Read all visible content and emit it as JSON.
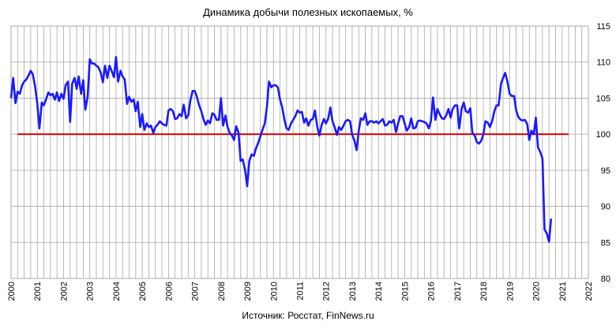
{
  "chart_data": {
    "type": "line",
    "title": "Динамика добычи полезных ископаемых, %",
    "source": "Источник: Росстат, FinNews.ru",
    "xlabel": "",
    "ylabel": "",
    "xlim": [
      2000,
      2022
    ],
    "ylim": [
      80,
      115
    ],
    "x_ticks": [
      "2000",
      "2001",
      "2002",
      "2003",
      "2004",
      "2005",
      "2006",
      "2007",
      "2008",
      "2009",
      "2010",
      "2011",
      "2012",
      "2013",
      "2014",
      "2015",
      "2016",
      "2017",
      "2018",
      "2019",
      "2020",
      "2021",
      "2022"
    ],
    "y_ticks": [
      "80",
      "85",
      "90",
      "95",
      "100",
      "105",
      "110",
      "115"
    ],
    "y_axis_side": "right",
    "grid": "vertical monthly lines, horizontal at y ticks",
    "colors": {
      "series": "#1a1aff",
      "reference": "#dd0000",
      "grid": "#a8a8a8"
    },
    "reference_line": {
      "y": 100,
      "x_start": 2000.25,
      "x_end": 2021.25
    },
    "series": [
      {
        "points": [
          [
            2000.0,
            105.0
          ],
          [
            2000.08,
            107.8
          ],
          [
            2000.17,
            104.3
          ],
          [
            2000.25,
            105.9
          ],
          [
            2000.33,
            105.6
          ],
          [
            2000.42,
            106.8
          ],
          [
            2000.5,
            107.3
          ],
          [
            2000.58,
            107.6
          ],
          [
            2000.67,
            108.2
          ],
          [
            2000.75,
            108.8
          ],
          [
            2000.83,
            108.3
          ],
          [
            2000.92,
            106.5
          ],
          [
            2001.0,
            104.3
          ],
          [
            2001.08,
            100.8
          ],
          [
            2001.17,
            104.4
          ],
          [
            2001.25,
            104.0
          ],
          [
            2001.33,
            104.8
          ],
          [
            2001.42,
            105.8
          ],
          [
            2001.5,
            105.4
          ],
          [
            2001.58,
            105.6
          ],
          [
            2001.67,
            104.8
          ],
          [
            2001.75,
            105.8
          ],
          [
            2001.83,
            104.6
          ],
          [
            2001.92,
            105.6
          ],
          [
            2002.0,
            104.9
          ],
          [
            2002.08,
            106.8
          ],
          [
            2002.17,
            107.3
          ],
          [
            2002.25,
            101.7
          ],
          [
            2002.33,
            107.0
          ],
          [
            2002.42,
            107.8
          ],
          [
            2002.5,
            106.3
          ],
          [
            2002.58,
            108.0
          ],
          [
            2002.67,
            105.6
          ],
          [
            2002.75,
            107.5
          ],
          [
            2002.83,
            103.4
          ],
          [
            2002.92,
            105.2
          ],
          [
            2003.0,
            110.4
          ],
          [
            2003.08,
            109.8
          ],
          [
            2003.17,
            109.8
          ],
          [
            2003.25,
            109.5
          ],
          [
            2003.33,
            109.3
          ],
          [
            2003.42,
            108.5
          ],
          [
            2003.5,
            107.2
          ],
          [
            2003.58,
            109.5
          ],
          [
            2003.67,
            107.8
          ],
          [
            2003.75,
            109.5
          ],
          [
            2003.83,
            108.8
          ],
          [
            2003.92,
            107.9
          ],
          [
            2004.0,
            110.7
          ],
          [
            2004.08,
            107.3
          ],
          [
            2004.17,
            108.8
          ],
          [
            2004.25,
            108.0
          ],
          [
            2004.33,
            107.6
          ],
          [
            2004.42,
            104.2
          ],
          [
            2004.5,
            105.2
          ],
          [
            2004.58,
            104.5
          ],
          [
            2004.67,
            104.8
          ],
          [
            2004.75,
            103.2
          ],
          [
            2004.83,
            104.5
          ],
          [
            2004.92,
            101.0
          ],
          [
            2005.0,
            102.8
          ],
          [
            2005.08,
            100.6
          ],
          [
            2005.17,
            101.5
          ],
          [
            2005.25,
            101.0
          ],
          [
            2005.33,
            101.2
          ],
          [
            2005.42,
            100.2
          ],
          [
            2005.5,
            101.0
          ],
          [
            2005.58,
            101.3
          ],
          [
            2005.67,
            101.8
          ],
          [
            2005.75,
            101.5
          ],
          [
            2005.83,
            101.3
          ],
          [
            2005.92,
            101.2
          ],
          [
            2006.0,
            103.3
          ],
          [
            2006.08,
            103.5
          ],
          [
            2006.17,
            103.2
          ],
          [
            2006.25,
            102.1
          ],
          [
            2006.33,
            102.2
          ],
          [
            2006.42,
            102.8
          ],
          [
            2006.5,
            102.5
          ],
          [
            2006.58,
            104.1
          ],
          [
            2006.67,
            102.2
          ],
          [
            2006.75,
            102.6
          ],
          [
            2006.83,
            104.6
          ],
          [
            2006.92,
            106.0
          ],
          [
            2007.0,
            106.0
          ],
          [
            2007.08,
            105.2
          ],
          [
            2007.17,
            104.0
          ],
          [
            2007.25,
            103.2
          ],
          [
            2007.33,
            102.1
          ],
          [
            2007.42,
            101.3
          ],
          [
            2007.5,
            101.9
          ],
          [
            2007.58,
            101.5
          ],
          [
            2007.67,
            102.9
          ],
          [
            2007.75,
            102.7
          ],
          [
            2007.83,
            102.0
          ],
          [
            2007.92,
            102.0
          ],
          [
            2008.0,
            105.0
          ],
          [
            2008.08,
            101.2
          ],
          [
            2008.17,
            102.6
          ],
          [
            2008.25,
            101.0
          ],
          [
            2008.33,
            100.2
          ],
          [
            2008.42,
            99.8
          ],
          [
            2008.5,
            99.2
          ],
          [
            2008.58,
            101.1
          ],
          [
            2008.67,
            100.2
          ],
          [
            2008.75,
            96.3
          ],
          [
            2008.83,
            96.5
          ],
          [
            2008.92,
            95.0
          ],
          [
            2009.0,
            92.8
          ],
          [
            2009.08,
            96.3
          ],
          [
            2009.17,
            97.2
          ],
          [
            2009.25,
            97.0
          ],
          [
            2009.33,
            98.0
          ],
          [
            2009.42,
            98.8
          ],
          [
            2009.5,
            99.7
          ],
          [
            2009.58,
            100.6
          ],
          [
            2009.67,
            101.5
          ],
          [
            2009.75,
            103.8
          ],
          [
            2009.83,
            107.3
          ],
          [
            2009.92,
            106.5
          ],
          [
            2010.0,
            106.8
          ],
          [
            2010.08,
            106.8
          ],
          [
            2010.17,
            106.5
          ],
          [
            2010.25,
            104.8
          ],
          [
            2010.33,
            103.8
          ],
          [
            2010.42,
            102.0
          ],
          [
            2010.5,
            100.8
          ],
          [
            2010.58,
            100.6
          ],
          [
            2010.67,
            101.5
          ],
          [
            2010.75,
            102.0
          ],
          [
            2010.83,
            102.5
          ],
          [
            2010.92,
            103.3
          ],
          [
            2011.0,
            103.0
          ],
          [
            2011.08,
            103.1
          ],
          [
            2011.17,
            101.6
          ],
          [
            2011.25,
            102.2
          ],
          [
            2011.33,
            101.2
          ],
          [
            2011.42,
            102.0
          ],
          [
            2011.5,
            102.1
          ],
          [
            2011.58,
            103.3
          ],
          [
            2011.67,
            101.0
          ],
          [
            2011.75,
            99.8
          ],
          [
            2011.83,
            101.2
          ],
          [
            2011.92,
            102.1
          ],
          [
            2012.0,
            101.5
          ],
          [
            2012.08,
            102.1
          ],
          [
            2012.17,
            103.7
          ],
          [
            2012.25,
            101.8
          ],
          [
            2012.33,
            101.0
          ],
          [
            2012.42,
            99.9
          ],
          [
            2012.5,
            101.0
          ],
          [
            2012.58,
            100.6
          ],
          [
            2012.67,
            101.2
          ],
          [
            2012.75,
            101.8
          ],
          [
            2012.83,
            102.0
          ],
          [
            2012.92,
            101.8
          ],
          [
            2013.0,
            99.9
          ],
          [
            2013.08,
            99.2
          ],
          [
            2013.17,
            97.8
          ],
          [
            2013.25,
            100.5
          ],
          [
            2013.33,
            102.2
          ],
          [
            2013.42,
            102.0
          ],
          [
            2013.5,
            102.9
          ],
          [
            2013.58,
            101.3
          ],
          [
            2013.67,
            101.8
          ],
          [
            2013.75,
            101.8
          ],
          [
            2013.83,
            101.6
          ],
          [
            2013.92,
            101.8
          ],
          [
            2014.0,
            101.5
          ],
          [
            2014.08,
            101.8
          ],
          [
            2014.17,
            102.1
          ],
          [
            2014.25,
            101.2
          ],
          [
            2014.33,
            101.3
          ],
          [
            2014.42,
            101.8
          ],
          [
            2014.5,
            101.6
          ],
          [
            2014.58,
            102.0
          ],
          [
            2014.67,
            100.3
          ],
          [
            2014.75,
            101.5
          ],
          [
            2014.83,
            102.5
          ],
          [
            2014.92,
            102.5
          ],
          [
            2015.0,
            101.5
          ],
          [
            2015.08,
            100.5
          ],
          [
            2015.17,
            101.0
          ],
          [
            2015.25,
            102.2
          ],
          [
            2015.33,
            100.8
          ],
          [
            2015.42,
            100.9
          ],
          [
            2015.5,
            101.8
          ],
          [
            2015.58,
            101.9
          ],
          [
            2015.67,
            101.8
          ],
          [
            2015.75,
            101.7
          ],
          [
            2015.83,
            101.5
          ],
          [
            2015.92,
            100.8
          ],
          [
            2016.0,
            101.8
          ],
          [
            2016.08,
            105.1
          ],
          [
            2016.17,
            102.0
          ],
          [
            2016.25,
            103.5
          ],
          [
            2016.33,
            102.8
          ],
          [
            2016.42,
            102.2
          ],
          [
            2016.5,
            102.1
          ],
          [
            2016.58,
            102.6
          ],
          [
            2016.67,
            103.5
          ],
          [
            2016.75,
            102.3
          ],
          [
            2016.83,
            103.5
          ],
          [
            2016.92,
            104.0
          ],
          [
            2017.0,
            104.0
          ],
          [
            2017.08,
            100.8
          ],
          [
            2017.17,
            103.5
          ],
          [
            2017.25,
            104.4
          ],
          [
            2017.33,
            103.2
          ],
          [
            2017.42,
            103.0
          ],
          [
            2017.5,
            103.6
          ],
          [
            2017.58,
            100.2
          ],
          [
            2017.67,
            99.8
          ],
          [
            2017.75,
            98.9
          ],
          [
            2017.83,
            98.7
          ],
          [
            2017.92,
            99.1
          ],
          [
            2018.0,
            100.0
          ],
          [
            2018.08,
            101.8
          ],
          [
            2018.17,
            101.6
          ],
          [
            2018.25,
            101.0
          ],
          [
            2018.33,
            101.8
          ],
          [
            2018.42,
            103.2
          ],
          [
            2018.5,
            104.0
          ],
          [
            2018.58,
            104.0
          ],
          [
            2018.67,
            107.0
          ],
          [
            2018.75,
            107.8
          ],
          [
            2018.83,
            108.5
          ],
          [
            2018.92,
            107.2
          ],
          [
            2019.0,
            105.6
          ],
          [
            2019.08,
            105.3
          ],
          [
            2019.17,
            105.3
          ],
          [
            2019.25,
            103.3
          ],
          [
            2019.33,
            102.4
          ],
          [
            2019.42,
            102.0
          ],
          [
            2019.5,
            101.9
          ],
          [
            2019.58,
            102.0
          ],
          [
            2019.67,
            101.4
          ],
          [
            2019.75,
            99.2
          ],
          [
            2019.83,
            100.5
          ],
          [
            2019.92,
            100.0
          ],
          [
            2020.0,
            102.3
          ],
          [
            2020.08,
            98.2
          ],
          [
            2020.17,
            97.5
          ],
          [
            2020.25,
            96.6
          ],
          [
            2020.33,
            86.8
          ],
          [
            2020.42,
            86.2
          ],
          [
            2020.5,
            85.1
          ],
          [
            2020.58,
            88.3
          ]
        ]
      }
    ]
  }
}
